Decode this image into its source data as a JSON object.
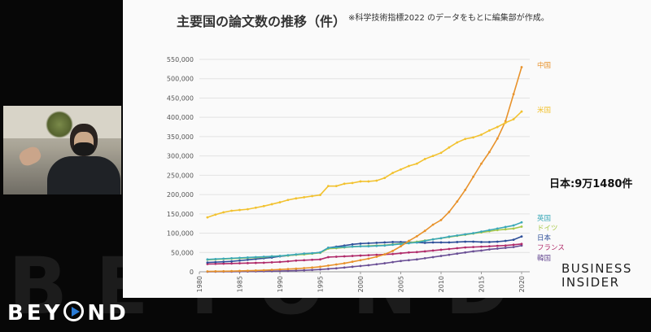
{
  "chart_data": {
    "type": "line",
    "title": "主要国の論文数の推移（件）",
    "note": "※科学技術指標2022 のデータをもとに編集部が作成。",
    "callout": "日本:9万1480件",
    "xlim": [
      1980,
      2022
    ],
    "ylim": [
      0,
      550000
    ],
    "x_ticks": [
      "1980",
      "1985",
      "1990",
      "1995",
      "2000",
      "2005",
      "2010",
      "2015",
      "2020"
    ],
    "y_ticks": [
      "0",
      "50,000",
      "100,000",
      "150,000",
      "200,000",
      "250,000",
      "300,000",
      "350,000",
      "400,000",
      "450,000",
      "500,000",
      "550,000"
    ],
    "grid": "horizontal",
    "x": [
      1981,
      1982,
      1983,
      1984,
      1985,
      1986,
      1987,
      1988,
      1989,
      1990,
      1991,
      1992,
      1993,
      1994,
      1995,
      1996,
      1997,
      1998,
      1999,
      2000,
      2001,
      2002,
      2003,
      2004,
      2005,
      2006,
      2007,
      2008,
      2009,
      2010,
      2011,
      2012,
      2013,
      2014,
      2015,
      2016,
      2017,
      2018,
      2019,
      2020
    ],
    "series": [
      {
        "name": "中国",
        "color": "#e8922b",
        "values": [
          1000,
          1200,
          1500,
          1800,
          2200,
          2700,
          3300,
          4000,
          5000,
          6000,
          7000,
          8000,
          9500,
          11000,
          13000,
          16000,
          19000,
          22000,
          26000,
          30000,
          34000,
          39000,
          45000,
          54000,
          66000,
          80000,
          92000,
          106000,
          122000,
          134000,
          155000,
          182000,
          212000,
          246000,
          280000,
          310000,
          345000,
          390000,
          460000,
          530000
        ]
      },
      {
        "name": "米国",
        "color": "#f2c230",
        "values": [
          141000,
          148000,
          154000,
          158000,
          160000,
          162000,
          166000,
          170000,
          175000,
          180000,
          186000,
          190000,
          193000,
          196000,
          199000,
          222000,
          222000,
          228000,
          230000,
          234000,
          234000,
          236000,
          243000,
          256000,
          265000,
          274000,
          280000,
          292000,
          300000,
          308000,
          322000,
          335000,
          344000,
          348000,
          355000,
          366000,
          375000,
          386000,
          395000,
          415000
        ]
      },
      {
        "name": "英国",
        "color": "#3aa8b8",
        "values": [
          32000,
          33000,
          34000,
          35000,
          36000,
          37000,
          38000,
          39000,
          40000,
          41000,
          43000,
          45000,
          47000,
          48000,
          50000,
          62000,
          63000,
          64000,
          65000,
          66000,
          66000,
          67000,
          68000,
          70000,
          72000,
          74000,
          76000,
          80000,
          84000,
          87000,
          91000,
          94000,
          97000,
          100000,
          104000,
          108000,
          112000,
          116000,
          120000,
          128000
        ]
      },
      {
        "name": "ドイツ",
        "color": "#a8c848",
        "values": [
          31000,
          32000,
          33000,
          34000,
          35000,
          36000,
          37000,
          38000,
          40000,
          41000,
          42000,
          44000,
          45000,
          47000,
          49000,
          60000,
          61000,
          63000,
          65000,
          66000,
          67000,
          68000,
          69000,
          71000,
          73000,
          75000,
          78000,
          81000,
          84000,
          87000,
          90000,
          93000,
          96000,
          99000,
          102000,
          105000,
          108000,
          110000,
          112000,
          117000
        ]
      },
      {
        "name": "日本",
        "color": "#2e4f99",
        "values": [
          24000,
          25000,
          26000,
          27000,
          29000,
          31000,
          33000,
          35000,
          37000,
          40000,
          42000,
          44000,
          46000,
          48000,
          50000,
          62000,
          65000,
          68000,
          71000,
          73000,
          74000,
          75000,
          76000,
          77000,
          77000,
          77000,
          76000,
          75000,
          76000,
          76000,
          76000,
          77000,
          78000,
          78000,
          77000,
          77000,
          78000,
          80000,
          83000,
          91480
        ]
      },
      {
        "name": "フランス",
        "color": "#b02b6a",
        "values": [
          20000,
          20500,
          21000,
          21500,
          22000,
          22500,
          23000,
          23500,
          24500,
          25500,
          27000,
          29000,
          30000,
          31000,
          32000,
          38000,
          39000,
          40000,
          41000,
          42000,
          43000,
          44000,
          45000,
          46000,
          48000,
          50000,
          51000,
          53000,
          55000,
          57000,
          59000,
          61000,
          63000,
          64000,
          65000,
          66000,
          67000,
          68000,
          70000,
          72000
        ]
      },
      {
        "name": "韓国",
        "color": "#6a4f95",
        "values": [
          200,
          300,
          400,
          500,
          600,
          800,
          1000,
          1300,
          1600,
          2000,
          2500,
          3000,
          3800,
          4800,
          6000,
          7500,
          9000,
          11000,
          13000,
          15000,
          17000,
          19500,
          22000,
          25000,
          28000,
          30000,
          32000,
          35000,
          38000,
          41000,
          44000,
          47000,
          50000,
          53000,
          55000,
          58000,
          60000,
          62000,
          64000,
          68000
        ]
      }
    ]
  },
  "logos": {
    "business_insider_line1": "BUSINESS",
    "business_insider_line2": "INSIDER",
    "beyond_pre": "BEY",
    "beyond_post": "ND",
    "watermark": "BEYOND"
  }
}
